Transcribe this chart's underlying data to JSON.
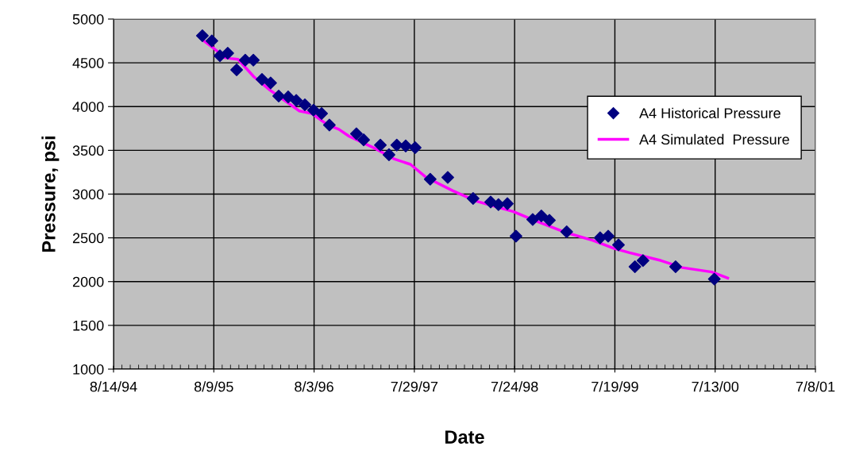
{
  "chart_data": {
    "type": "scatter",
    "xlabel": "Date",
    "ylabel": "Pressure, psi",
    "xlim": [
      "1994-08-14",
      "2001-07-08"
    ],
    "xticks": [
      {
        "value": "1994-08-14",
        "label": "8/14/94"
      },
      {
        "value": "1995-08-09",
        "label": "8/9/95"
      },
      {
        "value": "1996-08-03",
        "label": "8/3/96"
      },
      {
        "value": "1997-07-29",
        "label": "7/29/97"
      },
      {
        "value": "1998-07-24",
        "label": "7/24/98"
      },
      {
        "value": "1999-07-19",
        "label": "7/19/99"
      },
      {
        "value": "2000-07-13",
        "label": "7/13/00"
      },
      {
        "value": "2001-07-08",
        "label": "7/8/01"
      }
    ],
    "ylim": [
      1000,
      5000
    ],
    "yticks": [
      1000,
      1500,
      2000,
      2500,
      3000,
      3500,
      4000,
      4500,
      5000
    ],
    "grid": true,
    "legend": "right",
    "series": [
      {
        "name": "A4 Historical Pressure",
        "marker": "diamond",
        "color": "#000080",
        "x": [
          "1995-06-29",
          "1995-08-02",
          "1995-08-31",
          "1995-09-28",
          "1995-10-30",
          "1995-11-30",
          "1995-12-29",
          "1996-01-29",
          "1996-02-29",
          "1996-03-29",
          "1996-05-02",
          "1996-05-31",
          "1996-07-01",
          "1996-08-01",
          "1996-08-30",
          "1996-09-27",
          "1997-01-02",
          "1997-01-28",
          "1997-03-29",
          "1997-04-29",
          "1997-05-27",
          "1997-06-28",
          "1997-08-01",
          "1997-09-24",
          "1997-11-26",
          "1998-02-25",
          "1998-04-29",
          "1998-05-27",
          "1998-06-28",
          "1998-07-29",
          "1998-09-27",
          "1998-10-28",
          "1998-11-26",
          "1999-01-27",
          "1999-05-27",
          "1999-06-25",
          "1999-08-01",
          "1999-09-29",
          "1999-10-28",
          "2000-02-22",
          "2000-07-10"
        ],
        "values": [
          4810,
          4750,
          4580,
          4610,
          4420,
          4530,
          4530,
          4310,
          4270,
          4120,
          4110,
          4070,
          4020,
          3960,
          3920,
          3790,
          3690,
          3620,
          3560,
          3450,
          3560,
          3550,
          3530,
          3170,
          3190,
          2950,
          2910,
          2880,
          2890,
          2520,
          2710,
          2750,
          2700,
          2570,
          2500,
          2520,
          2420,
          2170,
          2240,
          2170,
          2030
        ]
      },
      {
        "name": "A4 Simulated  Pressure",
        "type": "line",
        "line_style": "solid",
        "color": "#ff00ff",
        "x": [
          "1995-07-05",
          "1995-08-11",
          "1995-09-17",
          "1995-10-07",
          "1995-11-04",
          "1995-12-31",
          "1996-02-26",
          "1996-06-11",
          "1996-07-26",
          "1996-09-21",
          "1996-10-31",
          "1996-12-07",
          "1997-03-11",
          "1997-05-19",
          "1997-07-15",
          "1997-09-10",
          "1997-12-13",
          "1998-03-08",
          "1998-07-20",
          "1998-10-03",
          "1999-01-25",
          "1999-05-01",
          "1999-07-15",
          "1999-09-10",
          "2000-01-01",
          "2000-03-17",
          "2000-07-01",
          "2000-08-27"
        ],
        "values": [
          4750,
          4660,
          4560,
          4550,
          4540,
          4340,
          4190,
          3950,
          3920,
          3790,
          3740,
          3660,
          3520,
          3400,
          3340,
          3190,
          3040,
          2920,
          2800,
          2700,
          2560,
          2470,
          2380,
          2330,
          2240,
          2160,
          2110,
          2040
        ]
      }
    ]
  }
}
